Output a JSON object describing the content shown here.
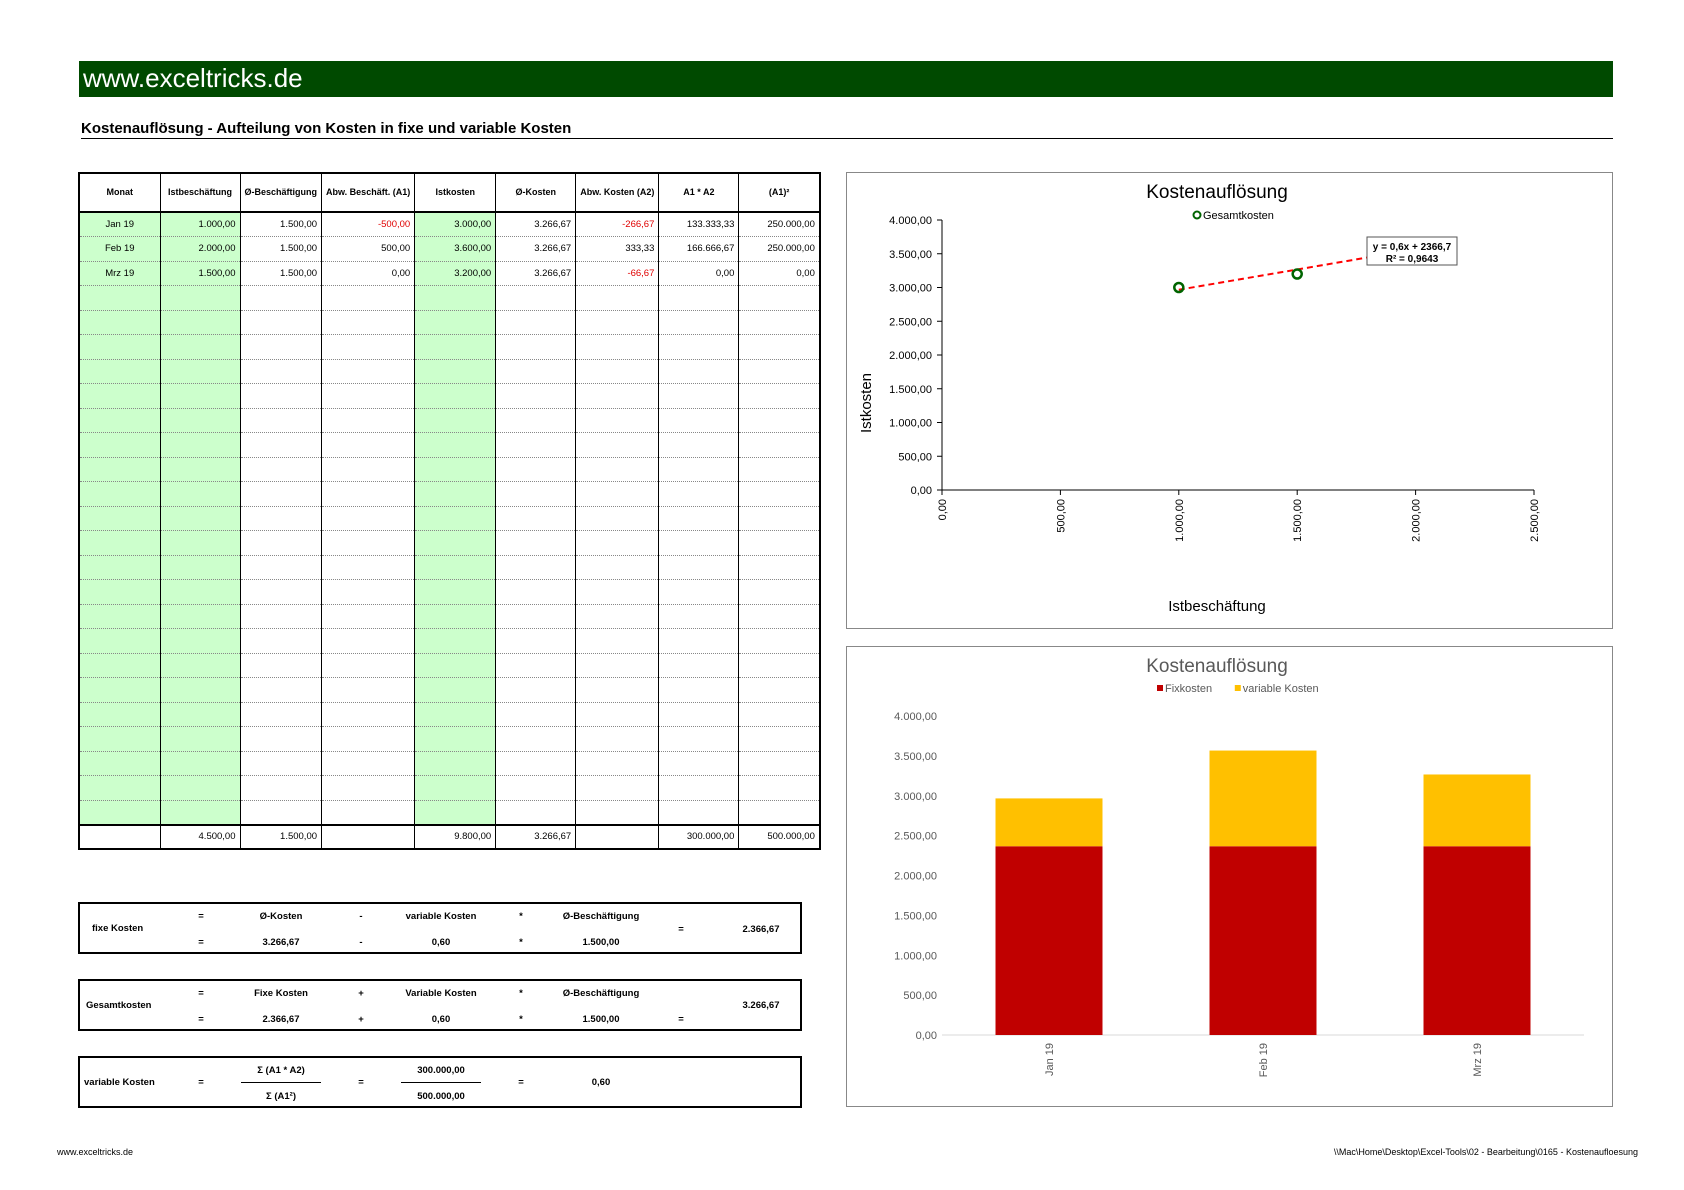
{
  "header": {
    "site": "www.exceltricks.de",
    "subtitle": "Kostenauflösung - Aufteilung von Kosten in fixe und variable Kosten"
  },
  "table": {
    "headers": [
      "Monat",
      "Istbeschäftung",
      "Ø-Beschäftigung",
      "Abw. Beschäft. (A1)",
      "Istkosten",
      "Ø-Kosten",
      "Abw. Kosten (A2)",
      "A1 * A2",
      "(A1)²"
    ],
    "rows": [
      [
        "Jan 19",
        "1.000,00",
        "1.500,00",
        "-500,00",
        "3.000,00",
        "3.266,67",
        "-266,67",
        "133.333,33",
        "250.000,00"
      ],
      [
        "Feb 19",
        "2.000,00",
        "1.500,00",
        "500,00",
        "3.600,00",
        "3.266,67",
        "333,33",
        "166.666,67",
        "250.000,00"
      ],
      [
        "Mrz 19",
        "1.500,00",
        "1.500,00",
        "0,00",
        "3.200,00",
        "3.266,67",
        "-66,67",
        "0,00",
        "0,00"
      ]
    ],
    "totals": [
      "",
      "4.500,00",
      "1.500,00",
      "",
      "9.800,00",
      "3.266,67",
      "",
      "300.000,00",
      "500.000,00"
    ]
  },
  "fixe_kosten": {
    "label": "fixe Kosten",
    "eq": "=",
    "minus": "-",
    "mul": "*",
    "t1": "Ø-Kosten",
    "t2": "variable Kosten",
    "t3": "Ø-Beschäftigung",
    "v1": "3.266,67",
    "v2": "0,60",
    "v3": "1.500,00",
    "result": "2.366,67"
  },
  "gesamtkosten": {
    "label": "Gesamtkosten",
    "eq": "=",
    "plus": "+",
    "mul": "*",
    "t1": "Fixe Kosten",
    "t2": "Variable Kosten",
    "t3": "Ø-Beschäftigung",
    "v1": "2.366,67",
    "v2": "0,60",
    "v3": "1.500,00",
    "result": "3.266,67"
  },
  "variable_kosten": {
    "label": "variable Kosten",
    "eq": "=",
    "num1": "Σ (A1 * A2)",
    "den1": "Σ (A1²)",
    "num2": "300.000,00",
    "den2": "500.000,00",
    "result": "0,60"
  },
  "footer": {
    "left": "www.exceltricks.de",
    "right": "\\\\Mac\\Home\\Desktop\\Excel-Tools\\02 - Bearbeitung\\0165 - Kostenaufloesung"
  },
  "chart_data": [
    {
      "type": "scatter",
      "title": "Kostenauflösung",
      "xlabel": "Istbeschäftung",
      "ylabel": "Istkosten",
      "legend": "Gesamtkosten",
      "legend_position": "top",
      "x": [
        1000,
        2000,
        1500
      ],
      "y": [
        3000,
        3600,
        3200
      ],
      "xlim": [
        0,
        2500
      ],
      "ylim": [
        0,
        4000
      ],
      "x_ticks": [
        "0,00",
        "500,00",
        "1.000,00",
        "1.500,00",
        "2.000,00",
        "2.500,00"
      ],
      "y_ticks": [
        "0,00",
        "500,00",
        "1.000,00",
        "1.500,00",
        "2.000,00",
        "2.500,00",
        "3.000,00",
        "3.500,00",
        "4.000,00"
      ],
      "trendline": {
        "slope": 0.6,
        "intercept": 2366.7,
        "equation": "y = 0,6x + 2366,7",
        "r2": "R² = 0,9643",
        "color": "#ff0000"
      },
      "marker_color": "#006400"
    },
    {
      "type": "bar",
      "stacked": true,
      "title": "Kostenauflösung",
      "categories": [
        "Jan 19",
        "Feb 19",
        "Mrz 19"
      ],
      "series": [
        {
          "name": "Fixkosten",
          "values": [
            2366.67,
            2366.67,
            2366.67
          ],
          "color": "#c00000"
        },
        {
          "name": "variable Kosten",
          "values": [
            600,
            1200,
            900
          ],
          "color": "#ffc000"
        }
      ],
      "ylim": [
        0,
        4000
      ],
      "y_ticks": [
        "0,00",
        "500,00",
        "1.000,00",
        "1.500,00",
        "2.000,00",
        "2.500,00",
        "3.000,00",
        "3.500,00",
        "4.000,00"
      ],
      "legend_position": "top"
    }
  ]
}
